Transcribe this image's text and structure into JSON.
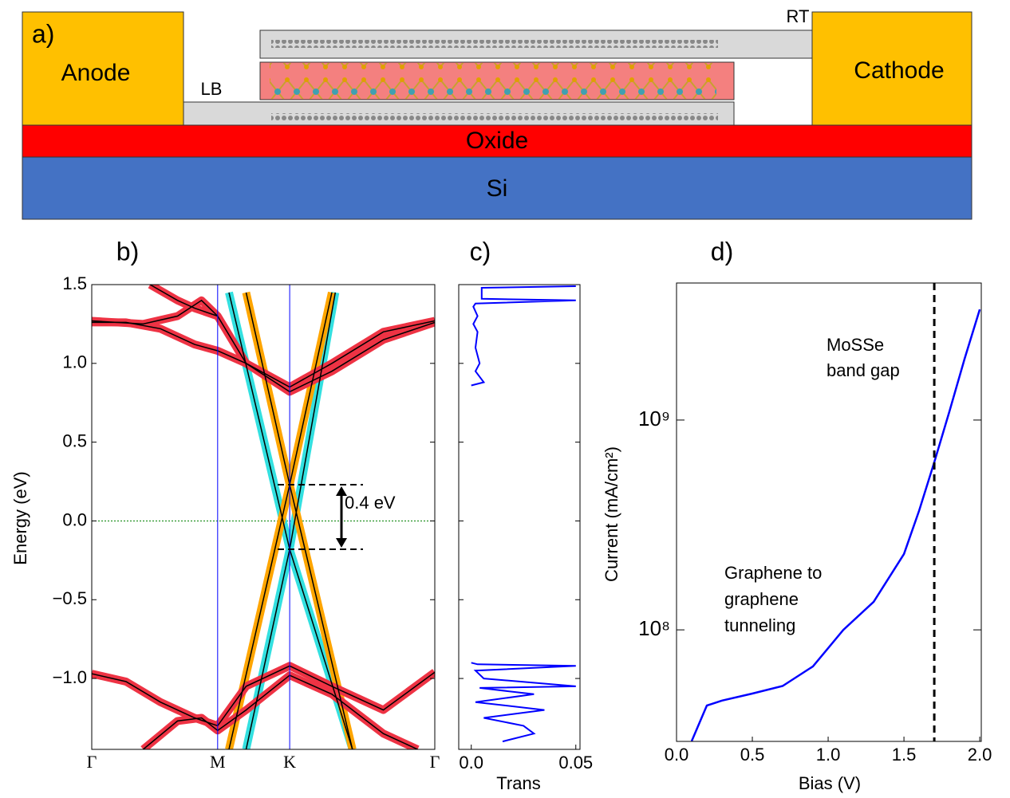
{
  "diagram": {
    "panel_label": "a)",
    "anode": "Anode",
    "cathode": "Cathode",
    "bottom_layer": "LB",
    "top_layer": "RT",
    "oxide": "Oxide",
    "substrate": "Si"
  },
  "chart_data": [
    {
      "type": "line",
      "title": "b)",
      "ylabel": "Energy (eV)",
      "xlim": [
        0,
        1
      ],
      "ylim": [
        -1.45,
        1.5
      ],
      "xticks": [
        {
          "value": 0,
          "label": "Γ"
        },
        {
          "value": 0.367,
          "label": "M"
        },
        {
          "value": 0.577,
          "label": "K"
        },
        {
          "value": 1,
          "label": "Γ"
        }
      ],
      "yticks": [
        {
          "value": -1,
          "label": "−1.0"
        },
        {
          "value": -0.5,
          "label": "−0.5"
        },
        {
          "value": 0,
          "label": "0.0"
        },
        {
          "value": 0.5,
          "label": "0.5"
        },
        {
          "value": 1,
          "label": "1.0"
        },
        {
          "value": 1.5,
          "label": "1.5"
        }
      ],
      "kpath_line_color": "#0000ff",
      "zero_line_color": "#008000",
      "overlay_color": "#000000",
      "series": [
        {
          "color": "#33e0e0",
          "x": [
            0.4,
            0.577,
            0.76
          ],
          "values": [
            1.45,
            -0.18,
            -1.45
          ]
        },
        {
          "color": "#33e0e0",
          "x": [
            0.45,
            0.577,
            0.71
          ],
          "values": [
            -1.45,
            -0.18,
            1.45
          ]
        },
        {
          "color": "#ffa500",
          "x": [
            0.4,
            0.577,
            0.7
          ],
          "values": [
            -1.45,
            0.23,
            1.45
          ]
        },
        {
          "color": "#ffa500",
          "x": [
            0.45,
            0.577,
            0.76
          ],
          "values": [
            1.45,
            0.23,
            -1.45
          ]
        },
        {
          "color": "#ee3344",
          "x": [
            0,
            0.1,
            0.2,
            0.3,
            0.367,
            0.45,
            0.577,
            0.7,
            0.85,
            1
          ],
          "values": [
            1.26,
            1.26,
            1.22,
            1.12,
            1.08,
            1.0,
            0.85,
            1.0,
            1.2,
            1.27
          ]
        },
        {
          "color": "#ee3344",
          "x": [
            0,
            0.15,
            0.25,
            0.32,
            0.367,
            0.45,
            0.577,
            0.7,
            0.85,
            1
          ],
          "values": [
            1.27,
            1.25,
            1.3,
            1.4,
            1.3,
            1.0,
            0.82,
            0.95,
            1.15,
            1.26
          ]
        },
        {
          "color": "#ee3344",
          "x": [
            0.17,
            0.25,
            0.3,
            0.367
          ],
          "values": [
            1.5,
            1.4,
            1.35,
            1.3
          ]
        },
        {
          "color": "#ee3344",
          "x": [
            0,
            0.1,
            0.2,
            0.3,
            0.367,
            0.45,
            0.577,
            0.7,
            0.85,
            1
          ],
          "values": [
            -0.97,
            -1.02,
            -1.15,
            -1.25,
            -1.3,
            -1.05,
            -0.92,
            -1.05,
            -1.2,
            -0.96
          ]
        },
        {
          "color": "#ee3344",
          "x": [
            0.15,
            0.25,
            0.32,
            0.367,
            0.45,
            0.577,
            0.7,
            0.85,
            0.95
          ],
          "values": [
            -1.45,
            -1.27,
            -1.25,
            -1.33,
            -1.2,
            -0.98,
            -1.1,
            -1.35,
            -1.45
          ]
        }
      ],
      "bracket": {
        "label": "0.4 eV",
        "values": [
          0.23,
          -0.18
        ]
      }
    },
    {
      "type": "trans",
      "title": "c)",
      "xlabel": "Trans",
      "xlim": [
        -0.006,
        0.052
      ],
      "ylim": [
        -1.45,
        1.5
      ],
      "xticks": [
        {
          "value": 0,
          "label": "0.0"
        },
        0.05
      ],
      "series": [
        {
          "color": "#0000ff",
          "y": [
            1.49,
            1.48,
            1.41,
            1.4,
            1.38,
            1.36,
            1.3,
            1.25,
            1.2,
            1.1,
            1.0,
            0.95,
            0.88,
            0.86,
            null,
            -0.9,
            -0.91,
            -0.92,
            -0.95,
            -1.0,
            -1.05,
            -1.06,
            -1.1,
            -1.15,
            -1.2,
            -1.25,
            -1.3,
            -1.35,
            -1.4
          ],
          "values": [
            0.05,
            0.005,
            0.005,
            0.05,
            0.002,
            0.001,
            0.003,
            0.001,
            0.003,
            0.002,
            0.004,
            0.002,
            0.006,
            0.0,
            null,
            0.0,
            0.003,
            0.05,
            0.002,
            0.006,
            0.05,
            0.004,
            0.03,
            0.002,
            0.035,
            0.006,
            0.025,
            0.03,
            0.015
          ]
        }
      ]
    },
    {
      "type": "line",
      "title": "d)",
      "xlabel": "Bias (V)",
      "ylabel": "Current (mA/cm²)",
      "log_y": true,
      "xlim": [
        0,
        2.01
      ],
      "ylim": [
        29400000,
        4500000000
      ],
      "xticks": [
        {
          "value": 0,
          "label": "0.0"
        },
        0.5,
        {
          "value": 1,
          "label": "1.0"
        },
        1.5,
        {
          "value": 2,
          "label": "2.0"
        }
      ],
      "yticks": [
        {
          "value": 100000000,
          "label": "10⁸"
        },
        {
          "value": 1000000000,
          "label": "10⁹"
        }
      ],
      "vline": 1.7,
      "annotations": [
        [
          "MoSSe",
          "band gap"
        ],
        [
          "Graphene to",
          "graphene",
          "tunneling"
        ]
      ],
      "series": [
        {
          "color": "#0000ff",
          "x": [
            0.1,
            0.2,
            0.3,
            0.5,
            0.7,
            0.9,
            1.1,
            1.3,
            1.5,
            1.6,
            1.7,
            1.8,
            1.9,
            2.0
          ],
          "values": [
            29500000,
            43600000,
            46000000,
            49700000,
            54000000,
            67000000,
            100000000,
            136000000,
            230000000,
            370000000,
            630000000,
            1100000000,
            1960000000,
            3370000000
          ]
        }
      ]
    }
  ]
}
